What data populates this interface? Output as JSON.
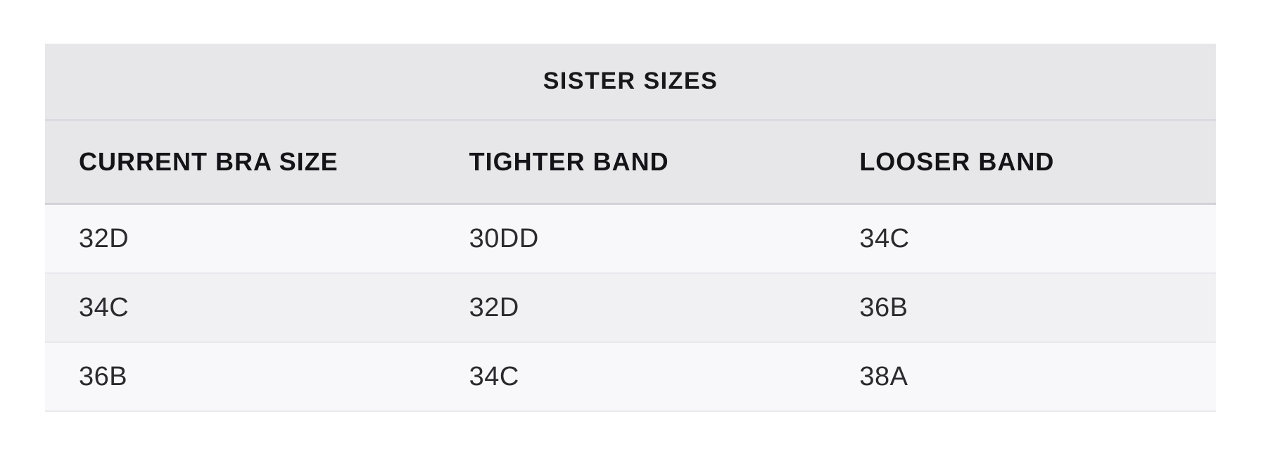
{
  "chart_data": {
    "type": "table",
    "title": "SISTER SIZES",
    "columns": [
      "CURRENT BRA SIZE",
      "TIGHTER BAND",
      "LOOSER BAND"
    ],
    "rows": [
      [
        "32D",
        "30DD",
        "34C"
      ],
      [
        "34C",
        "32D",
        "36B"
      ],
      [
        "36B",
        "34C",
        "38A"
      ]
    ],
    "layout_hints": {
      "title_position": "center",
      "header_alignment": "left",
      "row_striping": true
    }
  },
  "colors": {
    "page_background": "#ffffff",
    "header_background": "#e7e7ea",
    "row_light": "#f8f8fb",
    "row_alternate": "#f1f1f4",
    "divider_title": "#dbdbe1",
    "divider_header": "#d1d1d7",
    "divider_row": "#e9e9ed",
    "heading_text": "#18181b",
    "data_text": "#2a2a2f"
  }
}
